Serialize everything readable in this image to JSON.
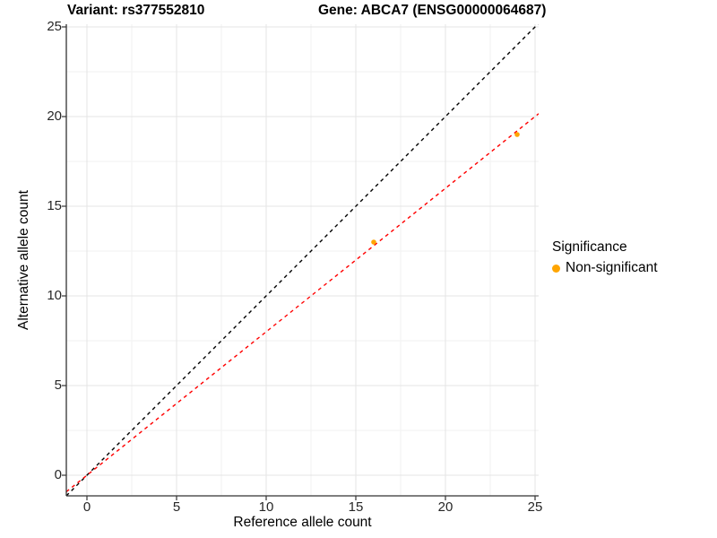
{
  "titles": {
    "variant": "Variant: rs377552810",
    "gene": "Gene: ABCA7 (ENSG00000064687)"
  },
  "legend": {
    "title": "Significance",
    "items": [
      {
        "label": "Non-significant",
        "color": "#FFA500"
      }
    ]
  },
  "chart_data": {
    "type": "scatter",
    "title": "Variant: rs377552810   Gene: ABCA7 (ENSG00000064687)",
    "xlabel": "Reference allele count",
    "ylabel": "Alternative allele count",
    "xlim": [
      -1.15,
      25.2
    ],
    "ylim": [
      -1.15,
      25.15
    ],
    "x_ticks": [
      0,
      5,
      10,
      15,
      20,
      25
    ],
    "y_ticks": [
      0,
      5,
      10,
      15,
      20,
      25
    ],
    "x_minor_ticks": [
      2.5,
      7.5,
      12.5,
      17.5,
      22.5
    ],
    "y_minor_ticks": [
      2.5,
      7.5,
      12.5,
      17.5,
      22.5
    ],
    "grid": true,
    "legend_position": "right",
    "series": [
      {
        "name": "Non-significant",
        "type": "scatter",
        "color": "#FFA500",
        "points": [
          {
            "x": 16,
            "y": 13
          },
          {
            "x": 24,
            "y": 19
          }
        ]
      }
    ],
    "lines": [
      {
        "name": "identity",
        "slope": 1.0,
        "intercept": 0,
        "color": "#000000",
        "style": "dashed"
      },
      {
        "name": "fit",
        "slope": 0.8,
        "intercept": 0,
        "color": "#FF0000",
        "style": "dashed"
      }
    ],
    "colors": {
      "background": "#FFFFFF",
      "grid_major": "#E4E4E4",
      "grid_minor": "#F2F2F2",
      "axis_line": "#333333",
      "point": "#FFA500",
      "identity_line": "#000000",
      "fit_line": "#FF0000"
    }
  }
}
